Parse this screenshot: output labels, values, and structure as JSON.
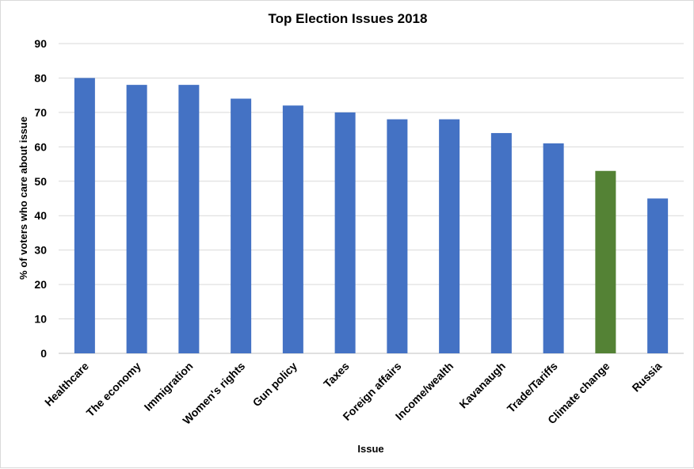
{
  "chart_data": {
    "type": "bar",
    "title": "Top Election Issues 2018",
    "xlabel": "Issue",
    "ylabel": "% of voters who care about issue",
    "categories": [
      "Healthcare",
      "The economy",
      "Immigration",
      "Women's rights",
      "Gun policy",
      "Taxes",
      "Foreign affairs",
      "Income/wealth",
      "Kavanaugh",
      "Trade/Tariffs",
      "Climate change",
      "Russia"
    ],
    "values": [
      80,
      78,
      78,
      74,
      72,
      70,
      68,
      68,
      64,
      61,
      53,
      45
    ],
    "bar_colors": [
      "#4472c4",
      "#4472c4",
      "#4472c4",
      "#4472c4",
      "#4472c4",
      "#4472c4",
      "#4472c4",
      "#4472c4",
      "#4472c4",
      "#4472c4",
      "#548235",
      "#4472c4"
    ],
    "ylim": [
      0,
      90
    ],
    "yticks": [
      0,
      10,
      20,
      30,
      40,
      50,
      60,
      70,
      80,
      90
    ],
    "grid": true,
    "legend": "none"
  }
}
